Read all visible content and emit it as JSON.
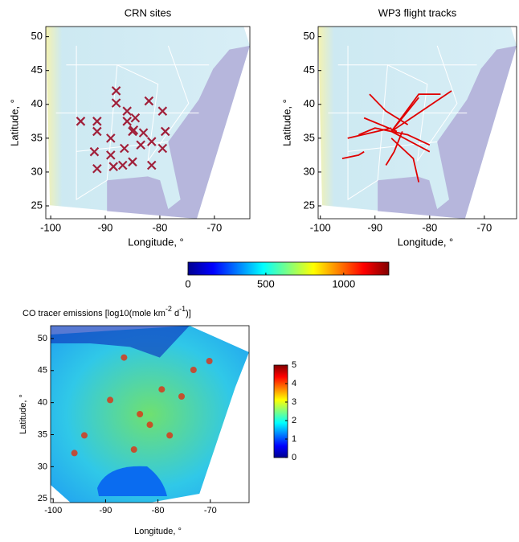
{
  "chart_data": [
    {
      "type": "scatter",
      "title": "CRN sites",
      "xlabel": "Longitude, °",
      "ylabel": "Latitude, °",
      "xlim": [
        -100.9,
        -63.5
      ],
      "ylim": [
        23.1,
        51.5
      ],
      "xticks": [
        -100,
        -90,
        -80,
        -70
      ],
      "yticks": [
        25,
        30,
        35,
        40,
        45,
        50
      ],
      "color": "#a0203a",
      "x": [
        -88,
        -88,
        -94.5,
        -91.5,
        -91.5,
        -86,
        -84.5,
        -86,
        -84.8,
        -82,
        -79.5,
        -85,
        -83,
        -89,
        -92,
        -89,
        -86.5,
        -83.5,
        -81.5,
        -79,
        -79.5,
        -86.8,
        -88.5,
        -91.5,
        -85,
        -81.5
      ],
      "y": [
        42,
        40.2,
        37.5,
        37.5,
        36,
        39,
        38,
        37.5,
        36.2,
        40.5,
        39,
        36,
        35.8,
        35,
        33,
        32.5,
        33.5,
        34,
        34.5,
        36,
        33.5,
        31,
        30.8,
        30.5,
        31.5,
        31
      ]
    },
    {
      "type": "line",
      "title": "WP3 flight tracks",
      "xlabel": "Longitude, °",
      "ylabel": "Latitude, °",
      "xlim": [
        -100.4,
        -64.1
      ],
      "ylim": [
        23.1,
        51.5
      ],
      "xticks": [
        -100,
        -90,
        -80,
        -70
      ],
      "yticks": [
        25,
        30,
        35,
        40,
        45,
        50
      ],
      "color": "#e00000",
      "series": [
        {
          "x": [
            -95,
            -87
          ],
          "y": [
            35,
            36.5
          ]
        },
        {
          "x": [
            -87,
            -76
          ],
          "y": [
            36,
            42
          ]
        },
        {
          "x": [
            -87,
            -84,
            -82
          ],
          "y": [
            36,
            39,
            41
          ]
        },
        {
          "x": [
            -87,
            -82,
            -78
          ],
          "y": [
            36,
            41.5,
            41.5
          ]
        },
        {
          "x": [
            -87,
            -80
          ],
          "y": [
            36,
            33
          ]
        },
        {
          "x": [
            -87,
            -83,
            -82
          ],
          "y": [
            35,
            32,
            28.5
          ]
        },
        {
          "x": [
            -93,
            -90,
            -87,
            -84,
            -80
          ],
          "y": [
            35.5,
            36.5,
            36,
            35.5,
            34
          ]
        },
        {
          "x": [
            -88,
            -86.5,
            -85
          ],
          "y": [
            31,
            33,
            36
          ]
        },
        {
          "x": [
            -96,
            -93,
            -92
          ],
          "y": [
            32,
            32.5,
            33
          ]
        },
        {
          "x": [
            -91,
            -88,
            -84
          ],
          "y": [
            41.5,
            39,
            37
          ]
        },
        {
          "x": [
            -92,
            -86
          ],
          "y": [
            38,
            36
          ]
        }
      ]
    },
    {
      "type": "colorbar",
      "clim": [
        0,
        1290
      ],
      "cticks": [
        0,
        500,
        1000
      ]
    },
    {
      "type": "heatmap",
      "title": [
        "CO tracer emissions [log10(mole km",
        "-2",
        " d",
        "-1",
        ")]"
      ],
      "xlabel": "Longitude, °",
      "ylabel": "Latitude, °",
      "xlim": [
        -100.5,
        -62.6
      ],
      "ylim": [
        24.4,
        52
      ],
      "xticks": [
        -100,
        -90,
        -80,
        -70
      ],
      "yticks": [
        25,
        30,
        35,
        40,
        45,
        50
      ],
      "clim": [
        0,
        5
      ],
      "cticks": [
        0,
        1,
        2,
        3,
        4,
        5
      ]
    }
  ]
}
